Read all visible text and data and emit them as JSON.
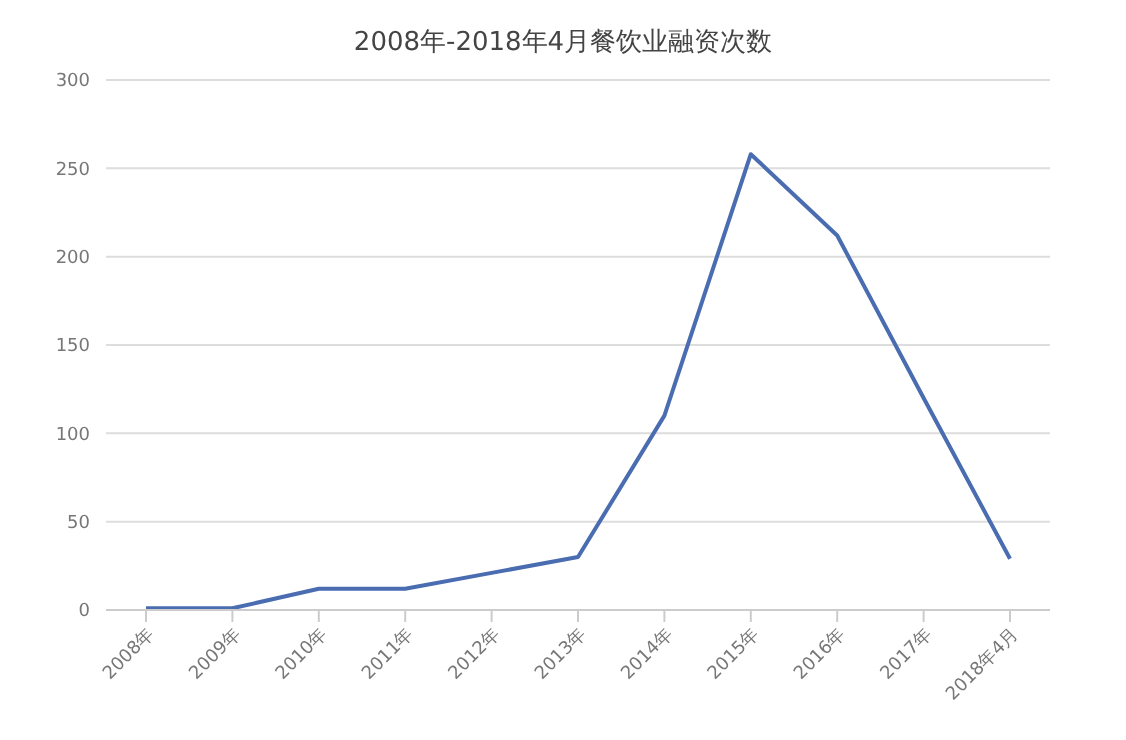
{
  "chart_data": {
    "type": "line",
    "title": "2008年-2018年4月餐饮业融资次数",
    "categories": [
      "2008年",
      "2009年",
      "2010年",
      "2011年",
      "2012年",
      "2013年",
      "2014年",
      "2015年",
      "2016年",
      "2017年",
      "2018年4月"
    ],
    "series": [
      {
        "color": "#4a6cb0",
        "values": [
          1,
          1,
          12,
          12,
          21,
          30,
          110,
          258,
          212,
          120,
          29
        ]
      }
    ],
    "ylim": [
      0,
      300
    ],
    "yticks": [
      0,
      50,
      100,
      150,
      200,
      250,
      300
    ],
    "grid": "y",
    "legend": false,
    "marker": "none",
    "line_style": "solid"
  }
}
